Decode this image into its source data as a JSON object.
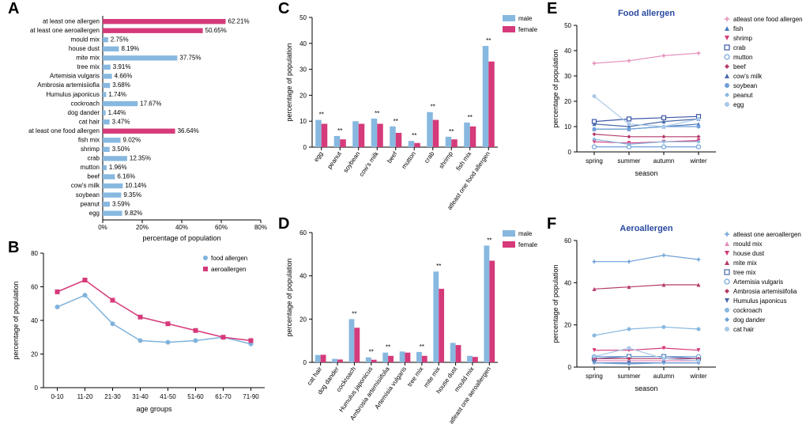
{
  "colors": {
    "pink": "#d53a7a",
    "blue": "#87b8e0",
    "blue_line": "#7fb3dd",
    "pink_line": "#d53a7a",
    "axis": "#000000"
  },
  "panelA": {
    "label": "A",
    "x_title": "percentage of population",
    "x_max": 80,
    "x_step": 20,
    "bars": [
      {
        "label": "at least one allergen",
        "value": 62.21,
        "color_key": "pink",
        "show_val": true
      },
      {
        "label": "at least one aeroallergen",
        "value": 50.65,
        "color_key": "pink",
        "show_val": true
      },
      {
        "label": "mould mix",
        "value": 2.75,
        "color_key": "blue",
        "show_val": true
      },
      {
        "label": "house dust",
        "value": 8.19,
        "color_key": "blue",
        "show_val": true
      },
      {
        "label": "mite mix",
        "value": 37.75,
        "color_key": "blue",
        "show_val": true
      },
      {
        "label": "tree mix",
        "value": 3.91,
        "color_key": "blue",
        "show_val": true
      },
      {
        "label": "Artemisia vulgaris",
        "value": 4.66,
        "color_key": "blue",
        "show_val": true
      },
      {
        "label": "Ambrosia artemisiiofia",
        "value": 3.68,
        "color_key": "blue",
        "show_val": true
      },
      {
        "label": "Humulus japonicus",
        "value": 1.74,
        "color_key": "blue",
        "show_val": true
      },
      {
        "label": "cockroach",
        "value": 17.67,
        "color_key": "blue",
        "show_val": true
      },
      {
        "label": "dog dander",
        "value": 1.44,
        "color_key": "blue",
        "show_val": true
      },
      {
        "label": "cat hair",
        "value": 3.47,
        "color_key": "blue",
        "show_val": true
      },
      {
        "label": "at least one food allergen",
        "value": 36.64,
        "color_key": "pink",
        "show_val": true
      },
      {
        "label": "fish mix",
        "value": 9.02,
        "color_key": "blue",
        "show_val": true
      },
      {
        "label": "shrimp",
        "value": 3.5,
        "color_key": "blue",
        "show_val": true
      },
      {
        "label": "crab",
        "value": 12.35,
        "color_key": "blue",
        "show_val": true
      },
      {
        "label": "mutton",
        "value": 1.96,
        "color_key": "blue",
        "show_val": true
      },
      {
        "label": "beef",
        "value": 6.16,
        "color_key": "blue",
        "show_val": true
      },
      {
        "label": "cow's milk",
        "value": 10.14,
        "color_key": "blue",
        "show_val": true
      },
      {
        "label": "soybean",
        "value": 9.35,
        "color_key": "blue",
        "show_val": true
      },
      {
        "label": "peanut",
        "value": 3.59,
        "color_key": "blue",
        "show_val": true
      },
      {
        "label": "egg",
        "value": 9.82,
        "color_key": "blue",
        "show_val": true
      }
    ]
  },
  "panelB": {
    "label": "B",
    "y_title": "percentage of population",
    "x_title": "age groups",
    "y_max": 80,
    "y_step": 20,
    "x_cats": [
      "0-10",
      "11-20",
      "21-30",
      "31-40",
      "41-50",
      "51-60",
      "61-70",
      "71-90"
    ],
    "series": [
      {
        "name": "food allergen",
        "color_key": "blue_line",
        "values": [
          48,
          55,
          38,
          28,
          27,
          28,
          30,
          26
        ],
        "marker": "circle"
      },
      {
        "name": "aeroallergen",
        "color_key": "pink_line",
        "values": [
          57,
          64,
          52,
          42,
          38,
          34,
          30,
          28
        ],
        "marker": "square"
      }
    ]
  },
  "panelC": {
    "label": "C",
    "y_title": "percentage of population",
    "y_max": 50,
    "y_step": 10,
    "legend": [
      "male",
      "female"
    ],
    "cats": [
      "egg",
      "peanut",
      "soybean",
      "cow's milk",
      "beef",
      "mutton",
      "crab",
      "shrimp",
      "fish mix",
      "atleast one food allergen"
    ],
    "sig": [
      "**",
      "**",
      "",
      "**",
      "**",
      "**",
      "**",
      "**",
      "**",
      "**"
    ],
    "male": [
      10.5,
      4.3,
      10,
      11,
      8,
      2.4,
      13.5,
      4,
      9.5,
      39
    ],
    "female": [
      9,
      3.0,
      9,
      9,
      5.5,
      1.6,
      10.5,
      3,
      8,
      33
    ]
  },
  "panelD": {
    "label": "D",
    "y_title": "percentage of population",
    "y_max": 60,
    "y_step": 20,
    "legend": [
      "male",
      "female"
    ],
    "cats": [
      "cat hair",
      "dog dander",
      "cockroach",
      "Humulus japonicus",
      "Ambrosia artemisiifolia",
      "Artemisia vulgaris",
      "tree mix",
      "mite mix",
      "house dust",
      "mould mix",
      "atleast one aeroallergen"
    ],
    "sig": [
      "",
      "",
      "**",
      "**",
      "**",
      "",
      "**",
      "**",
      "",
      "",
      "**"
    ],
    "male": [
      3.4,
      1.6,
      20,
      2.3,
      4.5,
      5,
      4.8,
      42,
      9,
      3,
      54
    ],
    "female": [
      3.5,
      1.3,
      16,
      1.2,
      3,
      4.5,
      3,
      34,
      8,
      2.5,
      47
    ]
  },
  "panelE": {
    "label": "E",
    "title": "Food allergen",
    "y_title": "percentage of population",
    "x_title": "season",
    "y_max": 50,
    "y_step": 10,
    "x_cats": [
      "spring",
      "summer",
      "autumn",
      "winter"
    ],
    "series": [
      {
        "name": "atleast one food allergen",
        "color": "#e58fbc",
        "marker": "plus",
        "values": [
          35,
          36,
          38,
          39
        ]
      },
      {
        "name": "fish",
        "color": "#4a7abf",
        "marker": "triangle-up",
        "values": [
          9,
          9,
          10,
          11
        ]
      },
      {
        "name": "shrimp",
        "color": "#d53a7a",
        "marker": "triangle-down",
        "values": [
          4,
          3.5,
          4,
          4.5
        ]
      },
      {
        "name": "crab",
        "color": "#3a55a8",
        "marker": "square-open",
        "values": [
          12,
          13,
          13.5,
          14
        ]
      },
      {
        "name": "mutton",
        "color": "#6fa0d8",
        "marker": "circle-open",
        "values": [
          2,
          2,
          2,
          2
        ]
      },
      {
        "name": "beef",
        "color": "#b53a6a",
        "marker": "diamond",
        "values": [
          7,
          6,
          6,
          6
        ]
      },
      {
        "name": "cow's milk",
        "color": "#4a6aa8",
        "marker": "triangle-up",
        "values": [
          11,
          10,
          12,
          13
        ]
      },
      {
        "name": "soybean",
        "color": "#6fa0d8",
        "marker": "circle",
        "values": [
          9,
          9,
          10,
          10
        ]
      },
      {
        "name": "peanut",
        "color": "#87b8e0",
        "marker": "diamond",
        "values": [
          5,
          3,
          4,
          4
        ]
      },
      {
        "name": "egg",
        "color": "#a8c8e8",
        "marker": "circle",
        "values": [
          22,
          11,
          10,
          13
        ]
      }
    ]
  },
  "panelF": {
    "label": "F",
    "title": "Aeroallergen",
    "y_title": "percentage of population",
    "x_title": "season",
    "y_max": 60,
    "y_step": 20,
    "x_cats": [
      "spring",
      "summer",
      "autumn",
      "winter"
    ],
    "series": [
      {
        "name": "atleast one aeroallergen",
        "color": "#6fa0d8",
        "marker": "plus",
        "values": [
          50,
          50,
          53,
          51
        ]
      },
      {
        "name": "mould mix",
        "color": "#e58fbc",
        "marker": "triangle-up",
        "values": [
          3,
          3,
          3,
          3
        ]
      },
      {
        "name": "house dust",
        "color": "#d53a7a",
        "marker": "triangle-down",
        "values": [
          8,
          8,
          9,
          8
        ]
      },
      {
        "name": "mite mix",
        "color": "#b53a6a",
        "marker": "triangle-up",
        "values": [
          37,
          38,
          39,
          39
        ]
      },
      {
        "name": "tree mix",
        "color": "#4a6aa8",
        "marker": "square-open",
        "values": [
          4,
          5,
          5,
          4
        ]
      },
      {
        "name": "Artemisia vulgaris",
        "color": "#6fa0d8",
        "marker": "circle-open",
        "values": [
          5,
          5,
          5,
          5
        ]
      },
      {
        "name": "Ambrosia artemisiifolia",
        "color": "#b53a6a",
        "marker": "diamond",
        "values": [
          4,
          4,
          4,
          4
        ]
      },
      {
        "name": "Humulus japonicus",
        "color": "#4a6aa8",
        "marker": "triangle-down",
        "values": [
          2,
          2,
          2,
          2
        ]
      },
      {
        "name": "cockroach",
        "color": "#87b8e0",
        "marker": "circle",
        "values": [
          15,
          18,
          19,
          18
        ]
      },
      {
        "name": "dog dander",
        "color": "#6fa0d8",
        "marker": "diamond",
        "values": [
          2,
          1.5,
          2,
          2
        ]
      },
      {
        "name": "cat hair",
        "color": "#a8c8e8",
        "marker": "circle",
        "values": [
          5,
          9,
          4,
          3
        ]
      }
    ]
  }
}
